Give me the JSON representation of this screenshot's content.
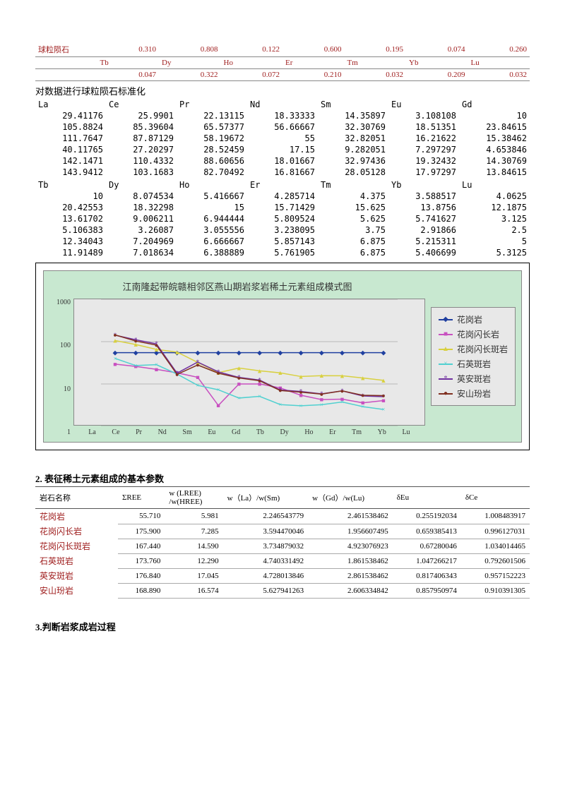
{
  "chondrite": {
    "label": "球粒陨石",
    "row1_els": [
      "",
      "",
      "",
      "",
      "",
      "",
      ""
    ],
    "row1_vals": [
      "0.310",
      "0.808",
      "0.122",
      "0.600",
      "0.195",
      "0.074",
      "0.260"
    ],
    "row2_els": [
      "Tb",
      "Dy",
      "Ho",
      "Er",
      "Tm",
      "Yb",
      "Lu"
    ],
    "row2_vals": [
      "0.047",
      "0.322",
      "0.072",
      "0.210",
      "0.032",
      "0.209",
      "0.032"
    ]
  },
  "norm_heading": "对数据进行球粒陨石标准化",
  "norm_head1": [
    "La",
    "Ce",
    "Pr",
    "Nd",
    "Sm",
    "Eu",
    "Gd"
  ],
  "norm_block1": [
    [
      "29.41176",
      "25.9901",
      "22.13115",
      "18.33333",
      "14.35897",
      "3.108108",
      "10"
    ],
    [
      "105.8824",
      "85.39604",
      "65.57377",
      "56.66667",
      "32.30769",
      "18.51351",
      "23.84615"
    ],
    [
      "111.7647",
      "87.87129",
      "58.19672",
      "55",
      "32.82051",
      "16.21622",
      "15.38462"
    ],
    [
      "40.11765",
      "27.20297",
      "28.52459",
      "17.15",
      "9.282051",
      "7.297297",
      "4.653846"
    ],
    [
      "142.1471",
      "110.4332",
      "88.60656",
      "18.01667",
      "32.97436",
      "19.32432",
      "14.30769"
    ],
    [
      "143.9412",
      "103.1683",
      "82.70492",
      "16.81667",
      "28.05128",
      "17.97297",
      "13.84615"
    ]
  ],
  "norm_head2": [
    "Tb",
    "Dy",
    "Ho",
    "Er",
    "Tm",
    "Yb",
    "Lu"
  ],
  "norm_block2": [
    [
      "10",
      "8.074534",
      "5.416667",
      "4.285714",
      "4.375",
      "3.588517",
      "4.0625"
    ],
    [
      "20.42553",
      "18.32298",
      "15",
      "15.71429",
      "15.625",
      "13.8756",
      "12.1875"
    ],
    [
      "13.61702",
      "9.006211",
      "6.944444",
      "5.809524",
      "5.625",
      "5.741627",
      "3.125"
    ],
    [
      "5.106383",
      "3.26087",
      "3.055556",
      "3.238095",
      "3.75",
      "2.91866",
      "2.5"
    ],
    [
      "12.34043",
      "7.204969",
      "6.666667",
      "5.857143",
      "6.875",
      "5.215311",
      "5"
    ],
    [
      "11.91489",
      "7.018634",
      "6.388889",
      "5.761905",
      "6.875",
      "5.406699",
      "5.3125"
    ]
  ],
  "chart": {
    "title": "江南隆起带皖赣相邻区燕山期岩浆岩稀土元素组成模式图",
    "type": "line-log",
    "xlabels": [
      "La",
      "Ce",
      "Pr",
      "Nd",
      "Sm",
      "Eu",
      "Gd",
      "Tb",
      "Dy",
      "Ho",
      "Er",
      "Tm",
      "Yb",
      "Lu"
    ],
    "ylabels": [
      "1000",
      "100",
      "10",
      "1"
    ],
    "background_color": "#c8e8d0",
    "plot_bg": "#e8e8e8",
    "legend": [
      {
        "label": "花岗岩",
        "color": "#2040a0",
        "marker": "◆"
      },
      {
        "label": "花岗闪长岩",
        "color": "#c850c0",
        "marker": "■"
      },
      {
        "label": "花岗闪长斑岩",
        "color": "#d8d040",
        "marker": "▲"
      },
      {
        "label": "石英斑岩",
        "color": "#50d0d0",
        "marker": "×"
      },
      {
        "label": "英安斑岩",
        "color": "#7030a0",
        "marker": "*"
      },
      {
        "label": "安山玢岩",
        "color": "#803020",
        "marker": "●"
      }
    ],
    "series_flat": {
      "label": "(flat)",
      "color": "#2040a0",
      "marker": "◆"
    }
  },
  "sec2_head": "2. 表征稀土元素组成的基本参数",
  "param_headers": [
    "岩石名称",
    "ΣREE",
    "w (LREE) /w(HREE)",
    "w（La）/w(Sm)",
    "w（Gd）/w(Lu)",
    "δEu",
    "δCe"
  ],
  "param_rows": [
    {
      "rock": "花岗岩",
      "v": [
        "55.710",
        "5.981",
        "2.246543779",
        "2.461538462",
        "0.255192034",
        "1.008483917"
      ]
    },
    {
      "rock": "花岗闪长岩",
      "v": [
        "175.900",
        "7.285",
        "3.594470046",
        "1.956607495",
        "0.659385413",
        "0.996127031"
      ]
    },
    {
      "rock": "花岗闪长斑岩",
      "v": [
        "167.440",
        "14.590",
        "3.734879032",
        "4.923076923",
        "0.67280046",
        "1.034014465"
      ]
    },
    {
      "rock": "石英斑岩",
      "v": [
        "173.760",
        "12.290",
        "4.740331492",
        "1.861538462",
        "1.047266217",
        "0.792601506"
      ]
    },
    {
      "rock": "英安斑岩",
      "v": [
        "176.840",
        "17.045",
        "4.728013846",
        "2.861538462",
        "0.817406343",
        "0.957152223"
      ]
    },
    {
      "rock": "安山玢岩",
      "v": [
        "168.890",
        "16.574",
        "5.627941263",
        "2.606334842",
        "0.857950974",
        "0.910391305"
      ]
    }
  ],
  "sec3_head": "3.判断岩浆成岩过程"
}
